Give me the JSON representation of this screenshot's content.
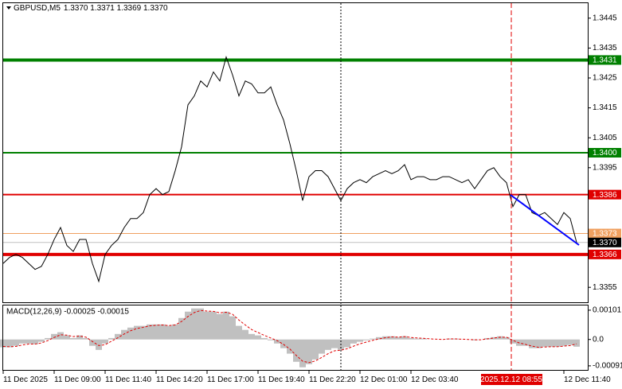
{
  "chart_data": [
    {
      "type": "line",
      "title": "GBPUSD,M5",
      "ohlc": "1.3370 1.3371 1.3369 1.3370",
      "crosshair_label": "2025.12.12 08:55",
      "color": "#000000",
      "categories": [
        "11 Dec 2025",
        null,
        null,
        null,
        null,
        null,
        null,
        null,
        "11 Dec 09:00",
        null,
        null,
        null,
        null,
        null,
        null,
        null,
        "11 Dec 11:40",
        null,
        null,
        null,
        null,
        null,
        null,
        null,
        "11 Dec 14:20",
        null,
        null,
        null,
        null,
        null,
        null,
        null,
        "11 Dec 17:00",
        null,
        null,
        null,
        null,
        null,
        null,
        null,
        "11 Dec 19:40",
        null,
        null,
        null,
        null,
        null,
        null,
        null,
        "11 Dec 22:20",
        null,
        null,
        null,
        null,
        null,
        null,
        null,
        "12 Dec 01:00",
        null,
        null,
        null,
        null,
        null,
        null,
        null,
        "12 Dec 03:40",
        null,
        null,
        null,
        null,
        null,
        null,
        null,
        null,
        null,
        null,
        null,
        null,
        null,
        null,
        null,
        null,
        null,
        null,
        null,
        null,
        null,
        null,
        null,
        "12 Dec 11:40",
        null,
        null
      ],
      "values": [
        1.3363,
        1.3365,
        1.3366,
        1.3365,
        1.3363,
        1.3361,
        1.3362,
        1.3366,
        1.3371,
        1.3375,
        1.3369,
        1.3367,
        1.3371,
        1.3371,
        1.3363,
        1.3357,
        1.3366,
        1.3369,
        1.3371,
        1.3375,
        1.3378,
        1.3378,
        1.338,
        1.3386,
        1.3388,
        1.3386,
        1.3387,
        1.3394,
        1.3402,
        1.3416,
        1.3419,
        1.3424,
        1.3422,
        1.3427,
        1.3424,
        1.3432,
        1.3426,
        1.3419,
        1.3424,
        1.3423,
        1.342,
        1.342,
        1.3422,
        1.3416,
        1.3411,
        1.3403,
        1.3394,
        1.3384,
        1.3392,
        1.3394,
        1.3394,
        1.3392,
        1.3388,
        1.3384,
        1.3388,
        1.339,
        1.3391,
        1.339,
        1.3392,
        1.3393,
        1.3394,
        1.3393,
        1.3394,
        1.3396,
        1.3391,
        1.3392,
        1.3392,
        1.3391,
        1.3391,
        1.3392,
        1.3392,
        1.3391,
        1.339,
        1.3391,
        1.3388,
        1.3391,
        1.3394,
        1.3395,
        1.3392,
        1.339,
        1.3382,
        1.3386,
        1.3386,
        1.338,
        1.3379,
        1.338,
        1.3378,
        1.3376,
        1.338,
        1.3378,
        1.337
      ],
      "ylim": [
        1.335,
        1.345
      ],
      "yticks": [
        1.3445,
        1.3435,
        1.3425,
        1.3415,
        1.3405,
        1.3395,
        1.3355
      ],
      "levels": [
        {
          "value": 1.3431,
          "color": "#008000",
          "style": "thick"
        },
        {
          "value": 1.34,
          "label": "1.3400",
          "color": "#008000",
          "style": "medium"
        },
        {
          "value": 1.3386,
          "color": "#e00000",
          "style": "medium"
        },
        {
          "value": 1.3373,
          "color": "#f0a060",
          "style": "thin"
        },
        {
          "value": 1.337,
          "label": "1.3370",
          "color": "#000000",
          "line_color": "#c0c0c0",
          "style": "thin"
        },
        {
          "value": 1.3366,
          "color": "#e00000",
          "style": "thick"
        }
      ]
    },
    {
      "type": "macd",
      "title": "MACD(12,26,9) -0.00025 -0.00015",
      "ylim": [
        -0.00105,
        0.0012
      ],
      "yticks": [
        0.00101,
        {
          "value": 0,
          "label": "0.0"
        },
        -0.00091
      ],
      "series": [
        {
          "type": "bar",
          "color": "#c0c0c0",
          "values": [
            -0.00027,
            -0.00027,
            -0.00022,
            -0.00014,
            -0.00014,
            -0.00016,
            -8e-05,
            5e-05,
            0.00019,
            0.00025,
            0.00014,
            5e-05,
            0.00014,
            5e-05,
            -0.00022,
            -0.00036,
            -0.00014,
            5e-05,
            0.00019,
            0.00033,
            0.00041,
            0.00047,
            0.00047,
            0.00052,
            0.00052,
            0.00052,
            0.00047,
            0.00052,
            0.00074,
            0.00096,
            0.00107,
            0.00107,
            0.00096,
            0.00096,
            0.00088,
            0.00096,
            0.0008,
            0.00047,
            0.00033,
            0.00019,
            0.00014,
            5e-05,
            -3e-05,
            -0.00014,
            -0.0003,
            -0.00049,
            -0.00077,
            -0.00096,
            -0.00085,
            -0.00069,
            -0.00049,
            -0.00036,
            -0.0003,
            -0.00036,
            -0.00027,
            -0.00014,
            -8e-05,
            -3e-05,
            3e-05,
            8e-05,
            0.00011,
            0.00011,
            8e-05,
            0.00011,
            5e-05,
            3e-05,
            3e-05,
            0,
            0,
            0,
            3e-05,
            3e-05,
            0,
            0,
            -3e-05,
            0,
            5e-05,
            8e-05,
            0.00011,
            8e-05,
            -0.00014,
            -0.00022,
            -0.00022,
            -0.0003,
            -0.0003,
            -0.00025,
            -0.00025,
            -0.00025,
            -0.00022,
            -0.00019,
            -0.00025
          ]
        },
        {
          "type": "line",
          "color": "#e00000",
          "dashed": true,
          "values": [
            -0.00024,
            -0.00025,
            -0.00024,
            -0.00019,
            -0.00016,
            -0.00016,
            -0.00012,
            -4e-05,
            7e-05,
            0.00016,
            0.00015,
            0.0001,
            0.00012,
            8e-05,
            -7e-05,
            -0.00021,
            -0.00018,
            -6e-05,
            6e-05,
            0.00019,
            0.0003,
            0.00038,
            0.00042,
            0.00047,
            0.00049,
            0.0005,
            0.00048,
            0.0005,
            0.00062,
            0.00079,
            0.00093,
            0.001,
            0.00098,
            0.00097,
            0.00092,
            0.00094,
            0.00087,
            0.00067,
            0.0005,
            0.00034,
            0.00024,
            0.00014,
            5e-05,
            -4e-05,
            -0.00017,
            -0.00033,
            -0.00055,
            -0.00075,
            -0.0008,
            -0.00074,
            -0.00062,
            -0.00049,
            -0.00039,
            -0.00037,
            -0.00032,
            -0.00023,
            -0.00015,
            -9e-05,
            -3e-05,
            2e-05,
            6e-05,
            9e-05,
            8e-05,
            0.0001,
            7e-05,
            5e-05,
            4e-05,
            2e-05,
            1e-05,
            0,
            2e-05,
            2e-05,
            1e-05,
            0,
            -1e-05,
            -1e-05,
            2e-05,
            5e-05,
            8e-05,
            8e-05,
            -3e-05,
            -0.00012,
            -0.00017,
            -0.00023,
            -0.00027,
            -0.00026,
            -0.00025,
            -0.00025,
            -0.00023,
            -0.00021,
            -0.00015
          ]
        }
      ]
    }
  ]
}
